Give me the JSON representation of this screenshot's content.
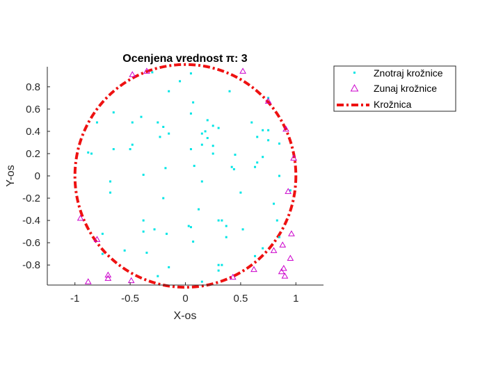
{
  "chart_data": {
    "type": "scatter",
    "title": "Ocenjena vrednost π: 3",
    "xlabel": "X-os",
    "ylabel": "Y-os",
    "xlim": [
      -1.25,
      1.25
    ],
    "ylim": [
      -0.98,
      0.98
    ],
    "xticks": [
      -1,
      -0.5,
      0,
      0.5,
      1
    ],
    "xtick_labels": [
      "-1",
      "-0.5",
      "0",
      "0.5",
      "1"
    ],
    "yticks": [
      -0.8,
      -0.6,
      -0.4,
      -0.2,
      0,
      0.2,
      0.4,
      0.6,
      0.8
    ],
    "ytick_labels": [
      "-0.8",
      "-0.6",
      "-0.4",
      "-0.2",
      "0",
      "0.2",
      "0.4",
      "0.6",
      "0.8"
    ],
    "grid": false,
    "legend_position": "outside-top-right",
    "series": [
      {
        "name": "Znotraj krožnice",
        "marker": "point",
        "color": "#00e5e5",
        "points": [
          [
            0.05,
            0.92
          ],
          [
            -0.3,
            0.93
          ],
          [
            -0.15,
            0.76
          ],
          [
            -0.05,
            0.85
          ],
          [
            0.4,
            0.76
          ],
          [
            0.75,
            0.7
          ],
          [
            -0.65,
            0.57
          ],
          [
            -0.8,
            0.48
          ],
          [
            -0.48,
            0.48
          ],
          [
            -0.4,
            0.53
          ],
          [
            -0.25,
            0.48
          ],
          [
            -0.2,
            0.44
          ],
          [
            0.05,
            0.56
          ],
          [
            0.07,
            0.66
          ],
          [
            0.2,
            0.5
          ],
          [
            0.25,
            0.45
          ],
          [
            0.3,
            0.43
          ],
          [
            0.6,
            0.48
          ],
          [
            0.7,
            0.41
          ],
          [
            0.75,
            0.41
          ],
          [
            0.65,
            0.35
          ],
          [
            0.75,
            0.32
          ],
          [
            0.85,
            0.29
          ],
          [
            -0.15,
            0.38
          ],
          [
            -0.23,
            0.35
          ],
          [
            0.15,
            0.38
          ],
          [
            0.18,
            0.4
          ],
          [
            0.2,
            0.34
          ],
          [
            0.15,
            0.28
          ],
          [
            0.25,
            0.27
          ],
          [
            -0.48,
            0.28
          ],
          [
            -0.5,
            0.24
          ],
          [
            -0.65,
            0.24
          ],
          [
            -0.88,
            0.21
          ],
          [
            -0.85,
            0.2
          ],
          [
            0.05,
            0.24
          ],
          [
            0.25,
            0.2
          ],
          [
            0.7,
            0.17
          ],
          [
            0.65,
            0.12
          ],
          [
            0.45,
            0.19
          ],
          [
            0.42,
            0.08
          ],
          [
            0.44,
            0.06
          ],
          [
            0.63,
            0.08
          ],
          [
            -0.18,
            0.07
          ],
          [
            -0.38,
            0.01
          ],
          [
            0.08,
            0.09
          ],
          [
            -0.68,
            -0.05
          ],
          [
            -0.68,
            -0.15
          ],
          [
            0.15,
            -0.05
          ],
          [
            0.85,
            0.0
          ],
          [
            0.5,
            -0.15
          ],
          [
            0.95,
            -0.13
          ],
          [
            -0.2,
            -0.2
          ],
          [
            0.8,
            -0.25
          ],
          [
            -0.38,
            -0.4
          ],
          [
            0.12,
            -0.3
          ],
          [
            0.3,
            -0.4
          ],
          [
            0.33,
            -0.4
          ],
          [
            0.37,
            -0.45
          ],
          [
            0.52,
            -0.48
          ],
          [
            0.83,
            -0.4
          ],
          [
            -0.38,
            -0.5
          ],
          [
            -0.28,
            -0.48
          ],
          [
            -0.17,
            -0.52
          ],
          [
            0.03,
            -0.45
          ],
          [
            0.05,
            -0.46
          ],
          [
            0.37,
            -0.55
          ],
          [
            -0.75,
            -0.52
          ],
          [
            0.07,
            -0.59
          ],
          [
            -0.55,
            -0.67
          ],
          [
            -0.35,
            -0.69
          ],
          [
            -0.75,
            -0.7
          ],
          [
            0.63,
            -0.72
          ],
          [
            0.7,
            -0.65
          ],
          [
            0.85,
            -0.55
          ],
          [
            -0.15,
            -0.82
          ],
          [
            0.3,
            -0.8
          ],
          [
            0.33,
            -0.8
          ],
          [
            0.3,
            -0.85
          ],
          [
            -0.25,
            -0.9
          ],
          [
            0.15,
            -0.95
          ]
        ]
      },
      {
        "name": "Zunaj krožnice",
        "marker": "triangle",
        "color": "#cc00cc",
        "points": [
          [
            -0.48,
            0.91
          ],
          [
            -0.35,
            0.94
          ],
          [
            0.52,
            0.94
          ],
          [
            0.75,
            0.67
          ],
          [
            0.91,
            0.42
          ],
          [
            0.98,
            0.16
          ],
          [
            0.93,
            -0.14
          ],
          [
            -0.95,
            -0.38
          ],
          [
            -0.8,
            -0.57
          ],
          [
            0.96,
            -0.52
          ],
          [
            0.88,
            -0.62
          ],
          [
            0.95,
            -0.74
          ],
          [
            0.8,
            -0.67
          ],
          [
            0.62,
            -0.84
          ],
          [
            0.87,
            -0.86
          ],
          [
            0.89,
            -0.83
          ],
          [
            0.9,
            -0.9
          ],
          [
            0.43,
            -0.91
          ],
          [
            -0.7,
            -0.89
          ],
          [
            -0.7,
            -0.92
          ],
          [
            -0.88,
            -0.95
          ],
          [
            -0.49,
            -0.94
          ]
        ]
      },
      {
        "name": "Krožnica",
        "marker": "dash-dot-line",
        "color": "#ee1111",
        "shape": "circle",
        "center": [
          0,
          0
        ],
        "radius": 1
      }
    ]
  }
}
